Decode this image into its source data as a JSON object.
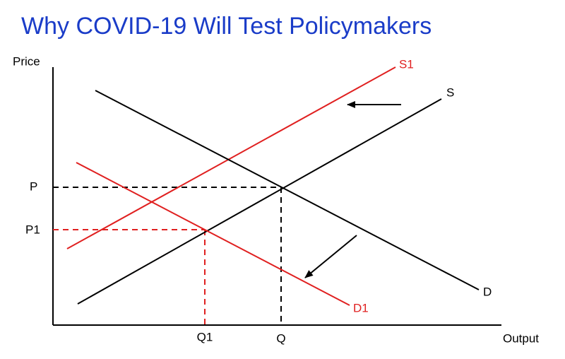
{
  "title": "Why COVID-19 Will Test Policymakers",
  "axes": {
    "y_label": "Price",
    "x_label": "Output"
  },
  "curves": {
    "supply": "S",
    "shifted_supply": "S1",
    "demand": "D",
    "shifted_demand": "D1"
  },
  "price_labels": {
    "original": "P",
    "new": "P1"
  },
  "quantity_labels": {
    "new": "Q1",
    "original": "Q"
  }
}
